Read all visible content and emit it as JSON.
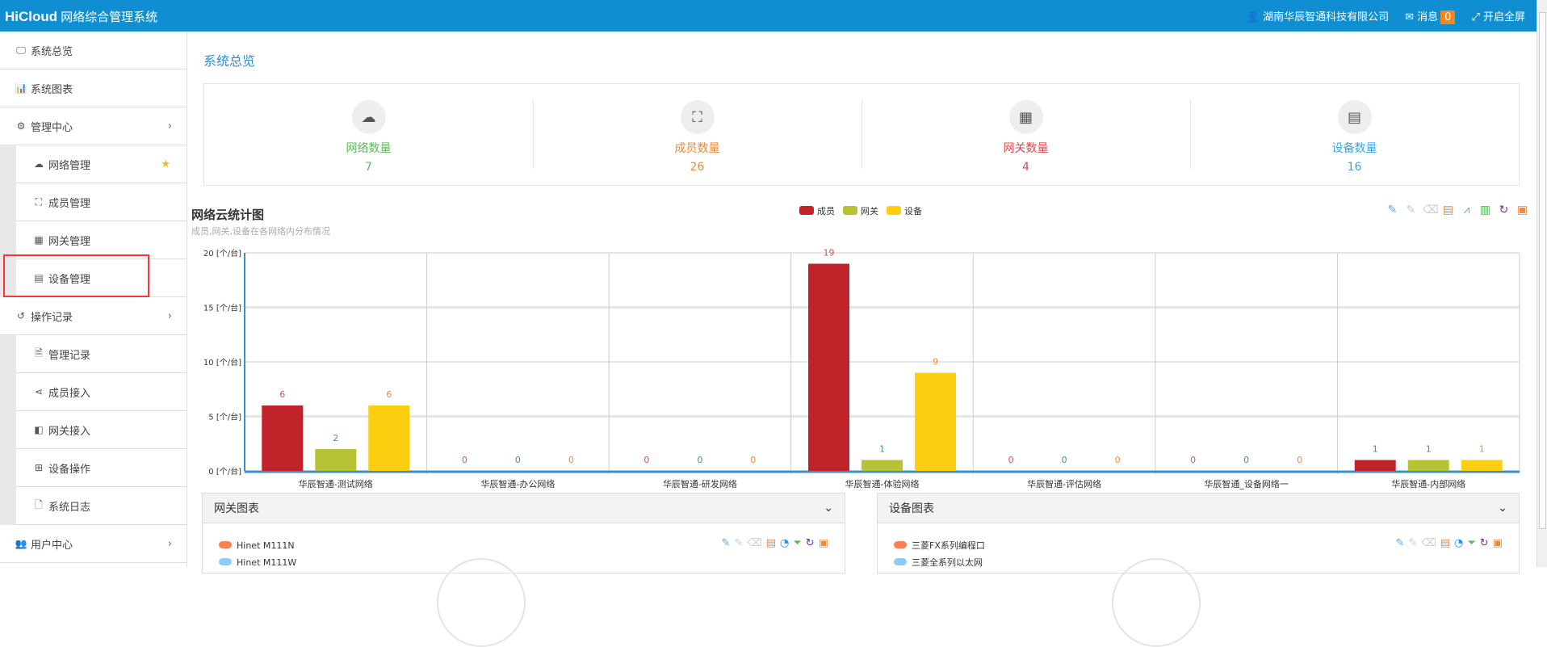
{
  "header": {
    "brand": "HiCloud",
    "system_name": "网络综合管理系统",
    "company": "湖南华辰智通科技有限公司",
    "messages_label": "消息",
    "messages_count": "0",
    "fullscreen_label": "开启全屏"
  },
  "sidebar": {
    "items": [
      {
        "label": "系统总览",
        "icon": "desktop-icon"
      },
      {
        "label": "系统图表",
        "icon": "bar-chart-icon"
      },
      {
        "label": "管理中心",
        "icon": "cogs-icon",
        "expandable": true
      },
      {
        "label": "网络管理",
        "icon": "cloud-icon",
        "sub": true,
        "starred": true
      },
      {
        "label": "成员管理",
        "icon": "sitemap-icon",
        "sub": true
      },
      {
        "label": "网关管理",
        "icon": "grid-icon",
        "sub": true
      },
      {
        "label": "设备管理",
        "icon": "calendar-icon",
        "sub": true,
        "highlighted": true
      },
      {
        "label": "操作记录",
        "icon": "history-icon",
        "expandable": true
      },
      {
        "label": "管理记录",
        "icon": "file-text-icon",
        "sub": true
      },
      {
        "label": "成员接入",
        "icon": "share-icon",
        "sub": true
      },
      {
        "label": "网关接入",
        "icon": "share-square-icon",
        "sub": true
      },
      {
        "label": "设备操作",
        "icon": "plus-square-icon",
        "sub": true
      },
      {
        "label": "系统日志",
        "icon": "file-icon",
        "sub": true
      },
      {
        "label": "用户中心",
        "icon": "users-icon",
        "expandable": true
      }
    ]
  },
  "page_title": "系统总览",
  "stats": [
    {
      "label": "网络数量",
      "value": "7",
      "color": "#5cb85c",
      "icon": "cloud-icon"
    },
    {
      "label": "成员数量",
      "value": "26",
      "color": "#f0883a",
      "icon": "sitemap-icon"
    },
    {
      "label": "网关数量",
      "value": "4",
      "color": "#e0474c",
      "icon": "grid-icon"
    },
    {
      "label": "设备数量",
      "value": "16",
      "color": "#3ba5e0",
      "icon": "calendar-icon"
    }
  ],
  "chart_data": {
    "type": "bar",
    "title": "网络云统计图",
    "subtitle": "成员,网关,设备在各网络内分布情况",
    "categories": [
      "华辰智通-测试网络",
      "华辰智通-办公网络",
      "华辰智通-研发网络",
      "华辰智通-体验网络",
      "华辰智通-评估网络",
      "华辰智通_设备网络一",
      "华辰智通-内部网络"
    ],
    "series": [
      {
        "name": "成员",
        "values": [
          6,
          0,
          0,
          19,
          0,
          0,
          1
        ],
        "color": "#c1232b",
        "label_color": "#d9534f"
      },
      {
        "name": "网关",
        "values": [
          2,
          0,
          0,
          1,
          0,
          0,
          1
        ],
        "color": "#b5c334",
        "label_color": "#4a8f9c"
      },
      {
        "name": "设备",
        "values": [
          6,
          0,
          0,
          9,
          0,
          0,
          1
        ],
        "color": "#fcce10",
        "label_color": "#f0883a"
      }
    ],
    "ylim": [
      0,
      20
    ],
    "yticks": [
      "0 [个/台]",
      "5 [个/台]",
      "10 [个/台]",
      "15 [个/台]",
      "20 [个/台]"
    ],
    "grid": true,
    "legend": "top-center"
  },
  "toolbox": [
    "mark-icon",
    "mark-undo-icon",
    "mark-clear-icon",
    "data-view-icon",
    "line-icon",
    "bar-icon",
    "refresh-icon",
    "save-icon"
  ],
  "gateway_panel": {
    "title": "网关图表",
    "legend": [
      {
        "name": "Hinet M111N",
        "color": "#ff7f50"
      },
      {
        "name": "Hinet M111W",
        "color": "#87cefa"
      }
    ]
  },
  "device_panel": {
    "title": "设备图表",
    "legend": [
      {
        "name": "三菱FX系列编程口",
        "color": "#ff7f50"
      },
      {
        "name": "三菱全系列以太网",
        "color": "#87cefa"
      }
    ]
  }
}
